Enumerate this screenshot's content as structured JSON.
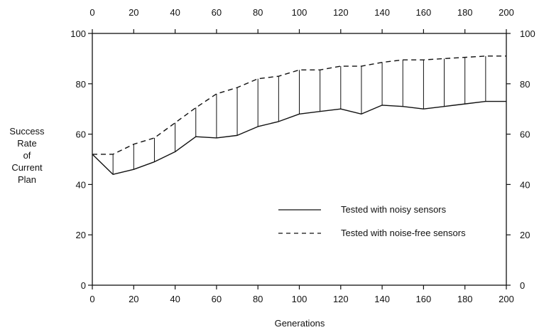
{
  "chart_data": {
    "type": "line",
    "xlabel": "Generations",
    "ylabel_lines": [
      "Success",
      "Rate",
      "of",
      "Current",
      "Plan"
    ],
    "xlim": [
      0,
      200
    ],
    "ylim": [
      0,
      100
    ],
    "x_ticks": [
      0,
      20,
      40,
      60,
      80,
      100,
      120,
      140,
      160,
      180,
      200
    ],
    "y_ticks": [
      0,
      20,
      40,
      60,
      80,
      100
    ],
    "grid": false,
    "legend_position": "lower-right",
    "x": [
      0,
      10,
      20,
      30,
      40,
      50,
      60,
      70,
      80,
      90,
      100,
      110,
      120,
      130,
      140,
      150,
      160,
      170,
      180,
      190,
      200
    ],
    "series": [
      {
        "name": "Tested with noisy sensors",
        "line_style": "solid",
        "values": [
          52,
          44,
          46,
          49,
          53,
          59,
          58.5,
          59.5,
          63,
          65,
          68,
          69,
          70,
          68,
          71.5,
          71,
          70,
          71,
          72,
          73,
          73
        ]
      },
      {
        "name": "Tested with noise-free sensors",
        "line_style": "dashed",
        "values": [
          52,
          52,
          56,
          58.5,
          64.5,
          70.5,
          76,
          78.5,
          82,
          83,
          85.5,
          85.5,
          87,
          87,
          88.5,
          89.5,
          89.5,
          90,
          90.5,
          91,
          91
        ]
      }
    ],
    "drop_lines": true
  }
}
